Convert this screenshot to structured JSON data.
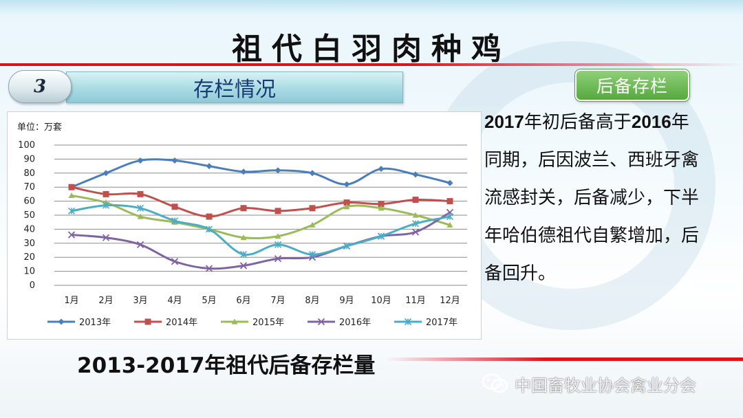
{
  "title": "祖代白羽肉种鸡",
  "section": {
    "number": "3",
    "label": "存栏情况"
  },
  "badge": "后备存栏",
  "description": {
    "year_a": "2017",
    "part_a": "年初后备高于",
    "year_b": "2016",
    "part_b": "年同期，后因波兰、西班牙禽流感封关，后备减少，下半年哈伯德祖代自繁增加，后备回升。"
  },
  "caption": "2013-2017年祖代后备存栏量",
  "watermark": {
    "icon": "wechat-icon",
    "text": "中国畜牧业协会禽业分会"
  },
  "colors": {
    "accent_red": "#d8141f",
    "badge_green": "#5cae43",
    "section_text": "#1a3a75"
  },
  "chart_data": {
    "type": "line",
    "unit_label": "单位：万套",
    "categories": [
      "1月",
      "2月",
      "3月",
      "4月",
      "5月",
      "6月",
      "7月",
      "8月",
      "9月",
      "10月",
      "11月",
      "12月"
    ],
    "ylim": [
      0,
      100
    ],
    "yticks": [
      0,
      10,
      20,
      30,
      40,
      50,
      60,
      70,
      80,
      90,
      100
    ],
    "grid": true,
    "legend_position": "bottom",
    "series": [
      {
        "name": "2013年",
        "color": "#4a7ebb",
        "marker": "diamond",
        "values": [
          70,
          80,
          89,
          89,
          85,
          81,
          82,
          80,
          72,
          83,
          79,
          73
        ]
      },
      {
        "name": "2014年",
        "color": "#c0504d",
        "marker": "square",
        "values": [
          70,
          65,
          65,
          56,
          49,
          55,
          53,
          55,
          59,
          58,
          61,
          60
        ]
      },
      {
        "name": "2015年",
        "color": "#9bbb59",
        "marker": "triangle",
        "values": [
          64,
          59,
          49,
          45,
          40,
          34,
          35,
          43,
          56,
          55,
          50,
          43
        ]
      },
      {
        "name": "2016年",
        "color": "#8064a2",
        "marker": "x",
        "values": [
          36,
          34,
          29,
          17,
          12,
          14,
          19,
          20,
          28,
          35,
          38,
          52
        ]
      },
      {
        "name": "2017年",
        "color": "#4bacc6",
        "marker": "star",
        "values": [
          53,
          57,
          55,
          46,
          40,
          22,
          29,
          22,
          28,
          35,
          44,
          49
        ]
      }
    ]
  }
}
